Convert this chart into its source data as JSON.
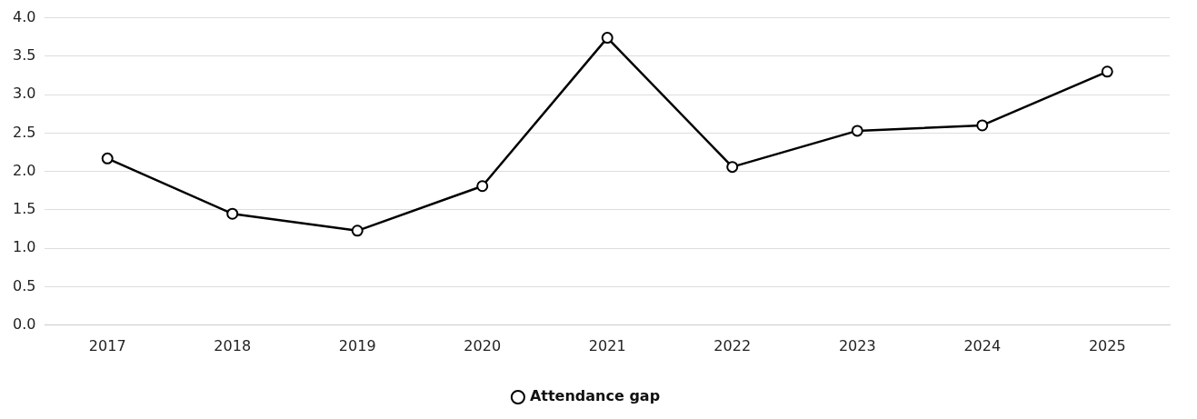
{
  "chart_data": {
    "type": "line",
    "categories": [
      "2017",
      "2018",
      "2019",
      "2020",
      "2021",
      "2022",
      "2023",
      "2024",
      "2025"
    ],
    "series": [
      {
        "name": "Attendance gap",
        "color": "#000000",
        "values": [
          2.17,
          1.45,
          1.23,
          1.81,
          3.74,
          2.06,
          2.53,
          2.6,
          3.3
        ]
      }
    ],
    "ylim": [
      0,
      4
    ],
    "yticks": [
      {
        "value": 0,
        "label": "0.0"
      },
      {
        "value": 0.5,
        "label": "0.5"
      },
      {
        "value": 1,
        "label": "1.0"
      },
      {
        "value": 1.5,
        "label": "1.5"
      },
      {
        "value": 2,
        "label": "2.0"
      },
      {
        "value": 2.5,
        "label": "2.5"
      },
      {
        "value": 3,
        "label": "3.0"
      },
      {
        "value": 3.5,
        "label": "3.5"
      },
      {
        "value": 4,
        "label": "4.0"
      }
    ],
    "grid": "y",
    "legend": "bottom",
    "marker": "circle",
    "line_style": "solid"
  }
}
